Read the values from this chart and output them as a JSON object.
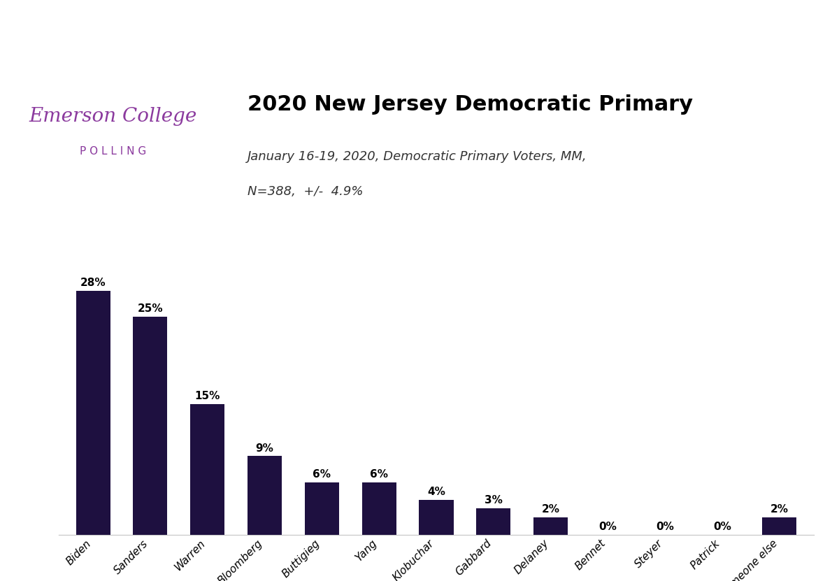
{
  "title": "2020 New Jersey Democratic Primary",
  "subtitle_line1": "January 16-19, 2020, Democratic Primary Voters, MM,",
  "subtitle_line2": "N=388,  +/-  4.9%",
  "emerson_line1": "Emerson College",
  "emerson_line2": "P O L L I N G",
  "categories": [
    "Biden",
    "Sanders",
    "Warren",
    "Bloomberg",
    "Buttigieg",
    "Yang",
    "Klobuchar",
    "Gabbard",
    "Delaney",
    "Bennet",
    "Steyer",
    "Patrick",
    "Someone else"
  ],
  "values": [
    28,
    25,
    15,
    9,
    6,
    6,
    4,
    3,
    2,
    0,
    0,
    0,
    2
  ],
  "bar_color": "#1e1040",
  "emerson_color": "#8b3a9e",
  "title_color": "#000000",
  "subtitle_color": "#333333",
  "background_color": "#ffffff",
  "divider_color": "#2c2c8c",
  "accent_bar_color": "#7b2d8b",
  "ylim": [
    0,
    32
  ],
  "value_label_fontsize": 11,
  "title_fontsize": 22,
  "subtitle_fontsize": 13,
  "tick_label_fontsize": 11
}
